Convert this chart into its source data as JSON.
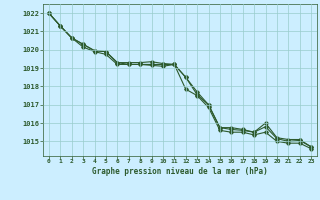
{
  "title": "Graphe pression niveau de la mer (hPa)",
  "background_color": "#cceeff",
  "grid_color": "#99cccc",
  "line_color": "#2d5a2d",
  "xlim": [
    -0.5,
    23.5
  ],
  "ylim": [
    1014.2,
    1022.5
  ],
  "yticks": [
    1015,
    1016,
    1017,
    1018,
    1019,
    1020,
    1021,
    1022
  ],
  "xticks": [
    0,
    1,
    2,
    3,
    4,
    5,
    6,
    7,
    8,
    9,
    10,
    11,
    12,
    13,
    14,
    15,
    16,
    17,
    18,
    19,
    20,
    21,
    22,
    23
  ],
  "line1": [
    1022.0,
    1021.3,
    1020.65,
    1020.3,
    1019.95,
    1019.9,
    1019.3,
    1019.3,
    1019.3,
    1019.35,
    1019.25,
    1019.2,
    1018.5,
    1017.7,
    1017.0,
    1015.75,
    1015.75,
    1015.65,
    1015.5,
    1016.0,
    1015.2,
    1015.1,
    1015.1,
    1014.7
  ],
  "line2": [
    1022.0,
    1021.3,
    1020.65,
    1020.3,
    1019.95,
    1019.9,
    1019.3,
    1019.2,
    1019.2,
    1019.2,
    1019.2,
    1019.2,
    1018.5,
    1017.55,
    1017.0,
    1015.75,
    1015.65,
    1015.6,
    1015.5,
    1015.8,
    1015.15,
    1015.0,
    1015.05,
    1014.7
  ],
  "line3": [
    1022.0,
    1021.3,
    1020.65,
    1020.15,
    1019.9,
    1019.75,
    1019.2,
    1019.2,
    1019.2,
    1019.15,
    1019.1,
    1019.2,
    1017.85,
    1017.5,
    1016.85,
    1015.6,
    1015.5,
    1015.5,
    1015.35,
    1015.5,
    1015.0,
    1014.9,
    1014.9,
    1014.6
  ]
}
